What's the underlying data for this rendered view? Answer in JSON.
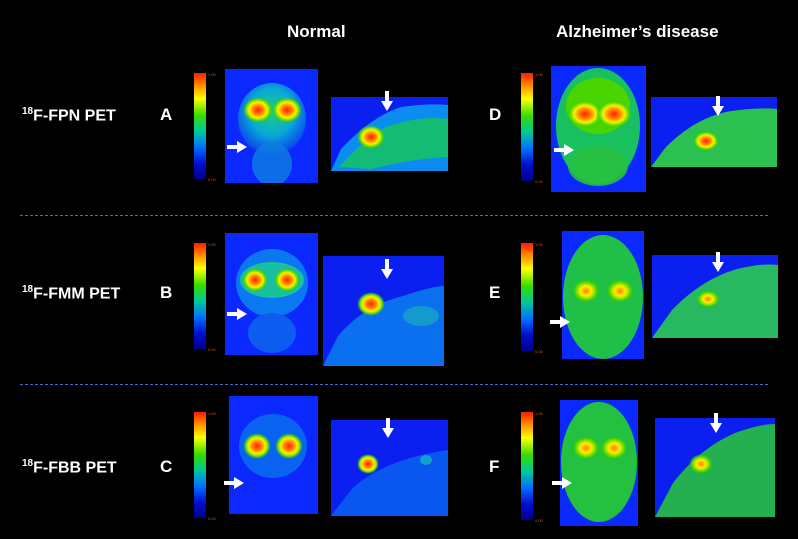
{
  "header": {
    "normal": "Normal",
    "alzheimers": "Alzheimer’s disease"
  },
  "rows": [
    {
      "tracer_sup": "18",
      "tracer": "F-FPN PET",
      "left_letter": "A",
      "right_letter": "D"
    },
    {
      "tracer_sup": "18",
      "tracer": "F-FMM PET",
      "left_letter": "B",
      "right_letter": "E"
    },
    {
      "tracer_sup": "18",
      "tracer": "F-FBB PET",
      "left_letter": "C",
      "right_letter": "F"
    }
  ],
  "scale": {
    "max": "1.00",
    "min": "0.00"
  },
  "colors": {
    "divider": "#3b6fd6",
    "background": "#000000"
  }
}
